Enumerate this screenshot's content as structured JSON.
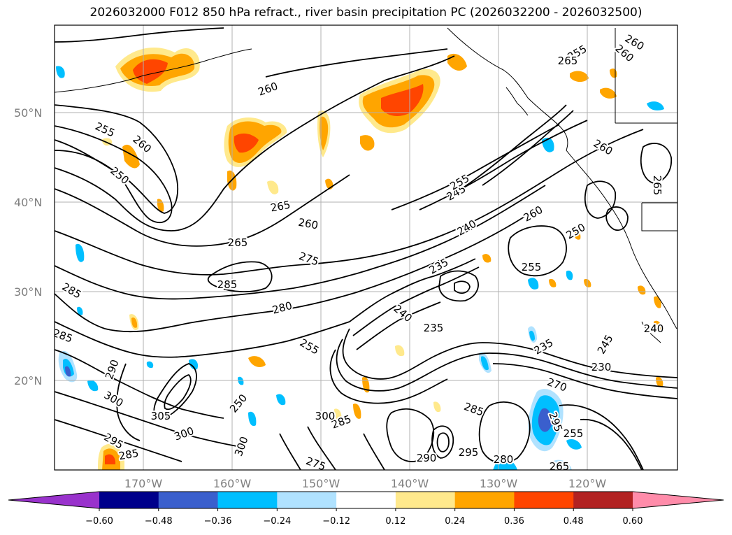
{
  "title": "2026032000 F012 850 hPa refract., river basin precipitation PC (2026032200 - 2026032500)",
  "map": {
    "lat_labels": [
      "50°N",
      "40°N",
      "30°N",
      "20°N"
    ],
    "lon_labels": [
      "170°W",
      "160°W",
      "150°W",
      "140°W",
      "130°W",
      "120°W"
    ],
    "contour_labels": [
      "255",
      "260",
      "265",
      "260",
      "255",
      "260",
      "250",
      "260",
      "265",
      "260",
      "265",
      "275",
      "285",
      "280",
      "285",
      "285",
      "290",
      "300",
      "305",
      "300",
      "295",
      "285",
      "255",
      "250",
      "285",
      "300",
      "275",
      "300",
      "290",
      "295",
      "285",
      "280",
      "295",
      "255",
      "265",
      "270",
      "245",
      "240",
      "235",
      "240",
      "235",
      "255",
      "260",
      "250",
      "235",
      "245",
      "230",
      "240",
      "255",
      "260",
      "265"
    ]
  },
  "colorbar": {
    "ticks": [
      "−0.60",
      "−0.48",
      "−0.36",
      "−0.24",
      "−0.12",
      "0.12",
      "0.24",
      "0.36",
      "0.48",
      "0.60"
    ],
    "colors": [
      "#9932cc",
      "#00008b",
      "#3a5fcd",
      "#00bfff",
      "#b0e2ff",
      "#ffffff",
      "#ffe98c",
      "#ffa500",
      "#ff4500",
      "#b22222",
      "#ff8caa"
    ]
  }
}
